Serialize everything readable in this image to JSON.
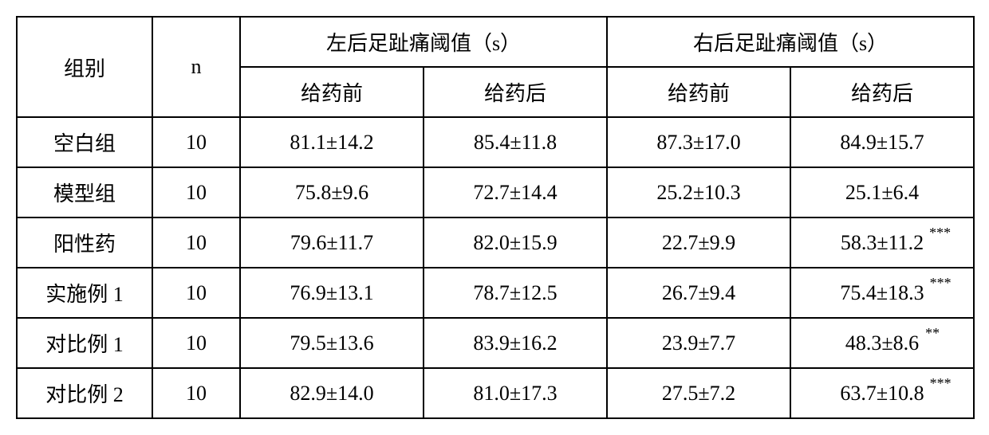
{
  "table": {
    "headers": {
      "group": "组别",
      "n": "n",
      "left_title": "左后足趾痛阈值（s）",
      "right_title": "右后足趾痛阈值（s）",
      "before": "给药前",
      "after": "给药后"
    },
    "rows": [
      {
        "group": "空白组",
        "n": "10",
        "lb": "81.1±14.2",
        "la": "85.4±11.8",
        "rb": "87.3±17.0",
        "ra": "84.9±15.7",
        "ra_sup": ""
      },
      {
        "group": "模型组",
        "n": "10",
        "lb": "75.8±9.6",
        "la": "72.7±14.4",
        "rb": "25.2±10.3",
        "ra": "25.1±6.4",
        "ra_sup": ""
      },
      {
        "group": "阳性药",
        "n": "10",
        "lb": "79.6±11.7",
        "la": "82.0±15.9",
        "rb": "22.7±9.9",
        "ra": "58.3±11.2",
        "ra_sup": "***"
      },
      {
        "group": "实施例 1",
        "n": "10",
        "lb": "76.9±13.1",
        "la": "78.7±12.5",
        "rb": "26.7±9.4",
        "ra": "75.4±18.3",
        "ra_sup": "***"
      },
      {
        "group": "对比例 1",
        "n": "10",
        "lb": "79.5±13.6",
        "la": "83.9±16.2",
        "rb": "23.9±7.7",
        "ra": "48.3±8.6",
        "ra_sup": "**"
      },
      {
        "group": "对比例 2",
        "n": "10",
        "lb": "82.9±14.0",
        "la": "81.0±17.3",
        "rb": "27.5±7.2",
        "ra": "63.7±10.8",
        "ra_sup": "***"
      }
    ],
    "style": {
      "border_color": "#000000",
      "background_color": "#ffffff",
      "font_size": 26,
      "sup_font_size": 18,
      "cell_padding": 12,
      "col_widths": {
        "group": 170,
        "n": 110,
        "value": 230
      },
      "total_width": 1200
    }
  }
}
